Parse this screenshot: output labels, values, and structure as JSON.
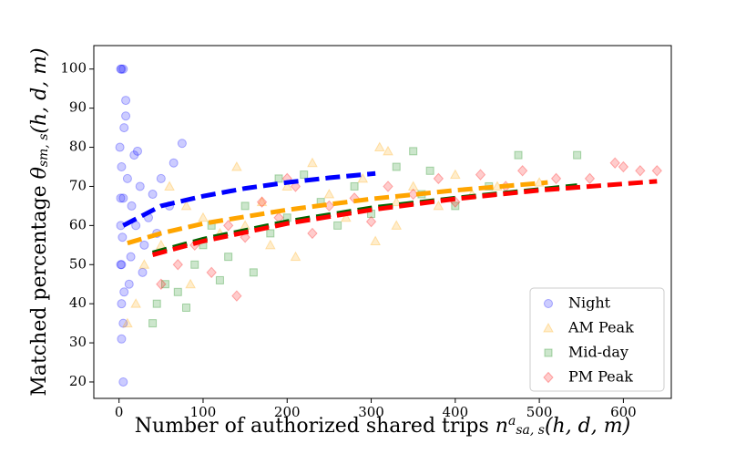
{
  "chart_data": {
    "type": "scatter",
    "xlabel_parts": [
      {
        "text": "Number of authorized shared trips "
      },
      {
        "text": "n",
        "style": "italic"
      },
      {
        "text": "a",
        "style": "sup"
      },
      {
        "text": "sa, s",
        "style": "sub"
      },
      {
        "text": "(h, d, m)",
        "style": "italic"
      }
    ],
    "ylabel_parts": [
      {
        "text": "Matched percentage "
      },
      {
        "text": "θ",
        "style": "italic"
      },
      {
        "text": "sm, s",
        "style": "sub"
      },
      {
        "text": "(h, d, m)",
        "style": "italic"
      }
    ],
    "xlim": [
      -30,
      657
    ],
    "ylim": [
      15.8,
      106
    ],
    "xticks": [
      0,
      100,
      200,
      300,
      400,
      500,
      600
    ],
    "yticks": [
      20,
      30,
      40,
      50,
      60,
      70,
      80,
      90,
      100
    ],
    "legend": "lower right",
    "series": [
      {
        "name": "Night",
        "color": "#0000ff",
        "marker": "circle",
        "x": [
          2,
          3,
          5,
          2,
          3,
          5,
          2,
          3,
          2,
          4,
          1,
          6,
          3,
          5,
          3,
          5,
          8,
          10,
          15,
          20,
          25,
          30,
          12,
          18,
          22,
          40,
          50,
          60,
          75,
          65,
          35,
          45,
          28,
          8,
          14,
          6
        ],
        "values": [
          100,
          100,
          100,
          50,
          50,
          67,
          67,
          75,
          60,
          57,
          80,
          85,
          40,
          35,
          31,
          20,
          92,
          72,
          65,
          60,
          70,
          55,
          45,
          78,
          79,
          68,
          72,
          65,
          81,
          76,
          62,
          58,
          48,
          88,
          52,
          43
        ],
        "trend": {
          "color": "#0000ff",
          "x": [
            5,
            50,
            100,
            150,
            200,
            250,
            305
          ],
          "values": [
            60,
            65,
            67.5,
            69.5,
            71,
            72.2,
            73.3
          ]
        }
      },
      {
        "name": "AM Peak",
        "color": "#ffa500",
        "marker": "triangle",
        "x": [
          10,
          20,
          30,
          50,
          60,
          80,
          100,
          120,
          140,
          150,
          170,
          180,
          200,
          210,
          230,
          250,
          270,
          290,
          310,
          320,
          330,
          350,
          380,
          400,
          420,
          450,
          500,
          330,
          305,
          85
        ],
        "values": [
          35,
          40,
          50,
          55,
          70,
          65,
          62,
          58,
          75,
          60,
          66,
          55,
          70,
          52,
          76,
          68,
          62,
          72,
          80,
          79,
          66,
          70,
          65,
          73,
          68,
          70,
          71,
          60,
          56,
          45
        ],
        "trend": {
          "color": "#ffa500",
          "x": [
            10,
            50,
            100,
            200,
            300,
            400,
            510
          ],
          "values": [
            55.5,
            58,
            60.5,
            64,
            66.8,
            69,
            71
          ]
        }
      },
      {
        "name": "Mid-day",
        "color": "#008000",
        "marker": "square",
        "x": [
          40,
          45,
          55,
          70,
          80,
          90,
          100,
          110,
          130,
          150,
          160,
          180,
          200,
          220,
          240,
          260,
          280,
          300,
          330,
          350,
          370,
          400,
          440,
          475,
          545,
          360,
          120,
          190
        ],
        "values": [
          35,
          40,
          45,
          43,
          39,
          50,
          55,
          60,
          52,
          65,
          48,
          58,
          62,
          73,
          66,
          60,
          70,
          63,
          75,
          79,
          74,
          65,
          70,
          78,
          78,
          68,
          46,
          72
        ],
        "trend": {
          "color": "#006400",
          "x": [
            40,
            100,
            200,
            300,
            400,
            545
          ],
          "values": [
            53,
            56.5,
            61,
            64.5,
            67,
            70.2
          ]
        }
      },
      {
        "name": "PM Peak",
        "color": "#ff0000",
        "marker": "diamond",
        "x": [
          50,
          70,
          90,
          110,
          130,
          150,
          170,
          190,
          210,
          230,
          250,
          280,
          300,
          320,
          350,
          380,
          400,
          430,
          460,
          480,
          520,
          560,
          600,
          620,
          640,
          590,
          200,
          140
        ],
        "values": [
          45,
          50,
          55,
          48,
          60,
          57,
          66,
          62,
          70,
          58,
          65,
          67,
          61,
          70,
          68,
          72,
          66,
          73,
          70,
          74,
          72,
          72,
          75,
          74,
          74,
          76,
          72,
          42
        ],
        "trend": {
          "color": "#ff0000",
          "x": [
            40,
            100,
            200,
            300,
            400,
            500,
            640
          ],
          "values": [
            52.5,
            56,
            60.5,
            64,
            66.8,
            69,
            71.3
          ]
        }
      }
    ]
  }
}
